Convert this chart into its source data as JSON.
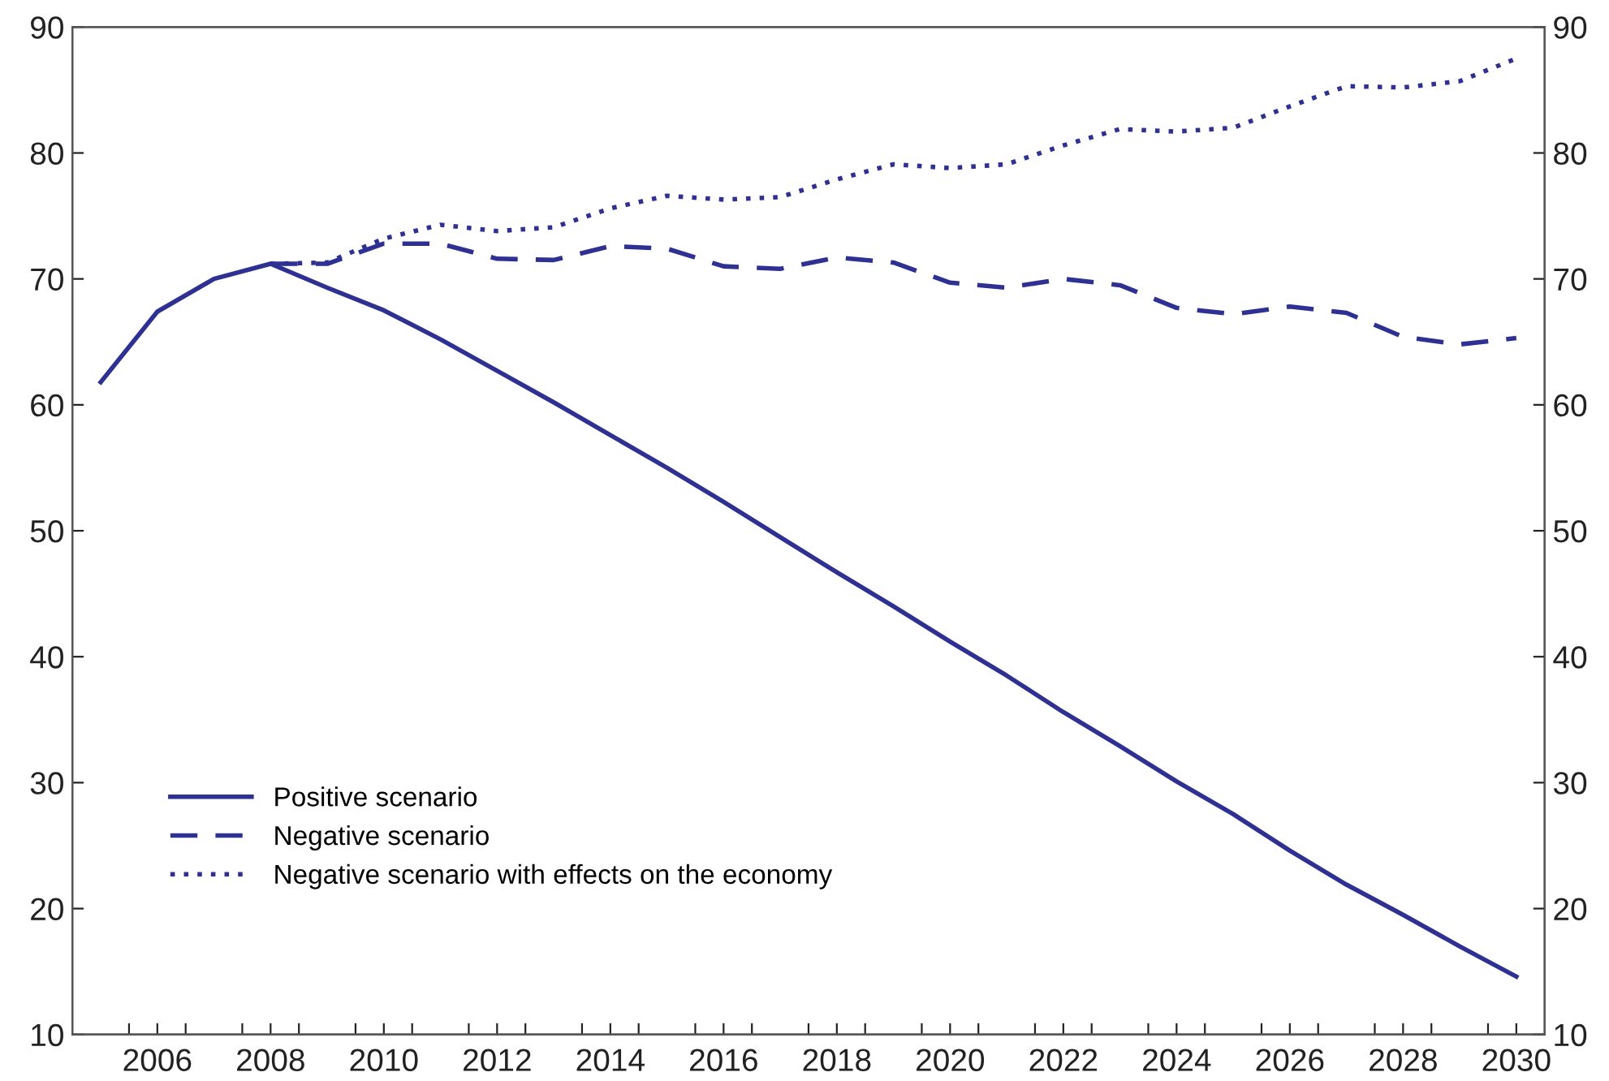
{
  "chart_data": {
    "type": "line",
    "x": [
      2005,
      2006,
      2007,
      2008,
      2009,
      2010,
      2011,
      2012,
      2013,
      2014,
      2015,
      2016,
      2017,
      2018,
      2019,
      2020,
      2021,
      2022,
      2023,
      2024,
      2025,
      2026,
      2027,
      2028,
      2029,
      2030
    ],
    "series": [
      {
        "name": "Positive scenario",
        "color": "#2e3192",
        "line_style": "solid",
        "values": [
          61.8,
          67.4,
          70.0,
          71.2,
          69.3,
          67.5,
          65.2,
          62.7,
          60.2,
          57.6,
          55.0,
          52.3,
          49.5,
          46.7,
          44.0,
          41.2,
          38.5,
          35.6,
          32.9,
          30.1,
          27.5,
          24.6,
          21.9,
          19.5,
          17.0,
          14.6
        ]
      },
      {
        "name": "Negative scenario",
        "color": "#2e3192",
        "line_style": "dashed",
        "values": [
          null,
          null,
          null,
          71.2,
          71.2,
          72.8,
          72.8,
          71.6,
          71.5,
          72.6,
          72.4,
          71.0,
          70.8,
          71.7,
          71.3,
          69.7,
          69.3,
          70.0,
          69.5,
          67.7,
          67.2,
          67.8,
          67.3,
          65.4,
          64.8,
          65.3
        ]
      },
      {
        "name": "Negative scenario with effects on the economy",
        "color": "#2e3192",
        "line_style": "dotted",
        "values": [
          null,
          null,
          null,
          71.2,
          71.3,
          73.2,
          74.3,
          73.8,
          74.1,
          75.6,
          76.6,
          76.3,
          76.5,
          77.9,
          79.1,
          78.8,
          79.1,
          80.6,
          81.9,
          81.7,
          82.0,
          83.7,
          85.3,
          85.2,
          85.7,
          87.5
        ]
      }
    ],
    "xlim": [
      2004.5,
      2030.5
    ],
    "xticks": [
      {
        "value": 2005.5,
        "label": null
      },
      2006,
      {
        "value": 2006.5,
        "label": null
      },
      {
        "value": 2007.5,
        "label": null
      },
      2008,
      {
        "value": 2008.5,
        "label": null
      },
      {
        "value": 2009.5,
        "label": null
      },
      2010,
      {
        "value": 2010.5,
        "label": null
      },
      {
        "value": 2011.5,
        "label": null
      },
      2012,
      {
        "value": 2012.5,
        "label": null
      },
      {
        "value": 2013.5,
        "label": null
      },
      2014,
      {
        "value": 2014.5,
        "label": null
      },
      {
        "value": 2015.5,
        "label": null
      },
      2016,
      {
        "value": 2016.5,
        "label": null
      },
      {
        "value": 2017.5,
        "label": null
      },
      2018,
      {
        "value": 2018.5,
        "label": null
      },
      {
        "value": 2019.5,
        "label": null
      },
      2020,
      {
        "value": 2020.5,
        "label": null
      },
      {
        "value": 2021.5,
        "label": null
      },
      2022,
      {
        "value": 2022.5,
        "label": null
      },
      {
        "value": 2023.5,
        "label": null
      },
      2024,
      {
        "value": 2024.5,
        "label": null
      },
      {
        "value": 2025.5,
        "label": null
      },
      2026,
      {
        "value": 2026.5,
        "label": null
      },
      {
        "value": 2027.5,
        "label": null
      },
      2028,
      {
        "value": 2028.5,
        "label": null
      },
      {
        "value": 2029.5,
        "label": null
      },
      2030
    ],
    "ylim": [
      10,
      90
    ],
    "yticks": [
      10,
      20,
      30,
      40,
      50,
      60,
      70,
      80,
      90
    ],
    "y2lim": [
      10,
      90
    ],
    "y2ticks": [
      10,
      20,
      30,
      40,
      50,
      60,
      70,
      80,
      90
    ],
    "grid": false,
    "legend": "bottom left",
    "marker": "none"
  }
}
